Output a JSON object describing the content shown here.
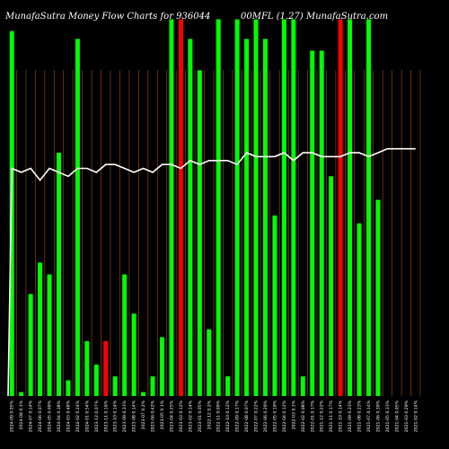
{
  "chart_data": {
    "type": "bar",
    "title": "MunafaSutra  Money Flow  Charts for 936044",
    "title_right": "00MFL (1.27)  MunafaSutra.com",
    "background": "#000000",
    "colors": {
      "up": "#00ff00",
      "down": "#ff0000",
      "grid": "#8b4513",
      "line": "#ffffff"
    },
    "grid": true,
    "ylim": [
      0,
      100
    ],
    "categories": [
      "2024-09 0.05%",
      "2024-08 0.1%",
      "2024-07 0.14%",
      "2024-06 0.07%",
      "2024-05 0.09%",
      "2024-04 0.38%",
      "2024-03 0.48%",
      "2024-02 0.24%",
      "2024-01 0.54%",
      "2023-12 0.07%",
      "2023-11 0.16%",
      "2023-10 0.14%",
      "2023-09 0.33%",
      "2023-08 0.14%",
      "2023-07 0.2%",
      "2023-06 0.42%",
      "2023-05 0.1%",
      "2023-04 0.25%",
      "2023-03 0.12%",
      "2023-02 0.14%",
      "2023-01 0.05%",
      "2022-12 0.2%",
      "2022-11 0.09%",
      "2022-10 0.12%",
      "2022-09 0.17%",
      "2022-08 0.07%",
      "2022-07 0.22%",
      "2022-06 0.29%",
      "2022-05 0.19%",
      "2022-04 0.12%",
      "2022-03 0.1%",
      "2022-02 0.08%",
      "2022-01 0.17%",
      "2021-12 0.22%",
      "2021-11 0.17%",
      "2021-10 0.14%",
      "2021-09 0.23%",
      "2021-08 0.23%",
      "2021-07 0.14%",
      "2021-06 0.39%",
      "2021-05 0.33%",
      "2021-04 0.05%",
      "2021-03 0.29%",
      "2021-02 0.14%"
    ],
    "series": [
      {
        "values": [
          93,
          1,
          26,
          34,
          31,
          62,
          4,
          91,
          14,
          8,
          14,
          5,
          31,
          21,
          1,
          5,
          15,
          96,
          96,
          91,
          83,
          17,
          96,
          5,
          96,
          91,
          96,
          91,
          46,
          96,
          96,
          5,
          88,
          88,
          56,
          96,
          96,
          44,
          96,
          50,
          0,
          0,
          0,
          0
        ],
        "colors": [
          "up",
          "up",
          "up",
          "up",
          "up",
          "up",
          "up",
          "up",
          "up",
          "up",
          "down",
          "up",
          "up",
          "up",
          "up",
          "up",
          "up",
          "up",
          "down",
          "up",
          "up",
          "up",
          "up",
          "up",
          "up",
          "up",
          "up",
          "up",
          "up",
          "up",
          "up",
          "up",
          "up",
          "up",
          "up",
          "down",
          "up",
          "up",
          "up",
          "up",
          "up",
          "up",
          "up",
          "up"
        ]
      }
    ],
    "line": [
      58,
      57,
      58,
      55,
      58,
      57,
      56,
      58,
      58,
      57,
      59,
      59,
      58,
      57,
      58,
      57,
      59,
      59,
      58,
      60,
      59,
      60,
      60,
      60,
      59,
      62,
      61,
      61,
      61,
      62,
      60,
      62,
      62,
      61,
      61,
      61,
      62,
      62,
      61,
      62,
      63,
      63,
      63,
      63
    ]
  }
}
